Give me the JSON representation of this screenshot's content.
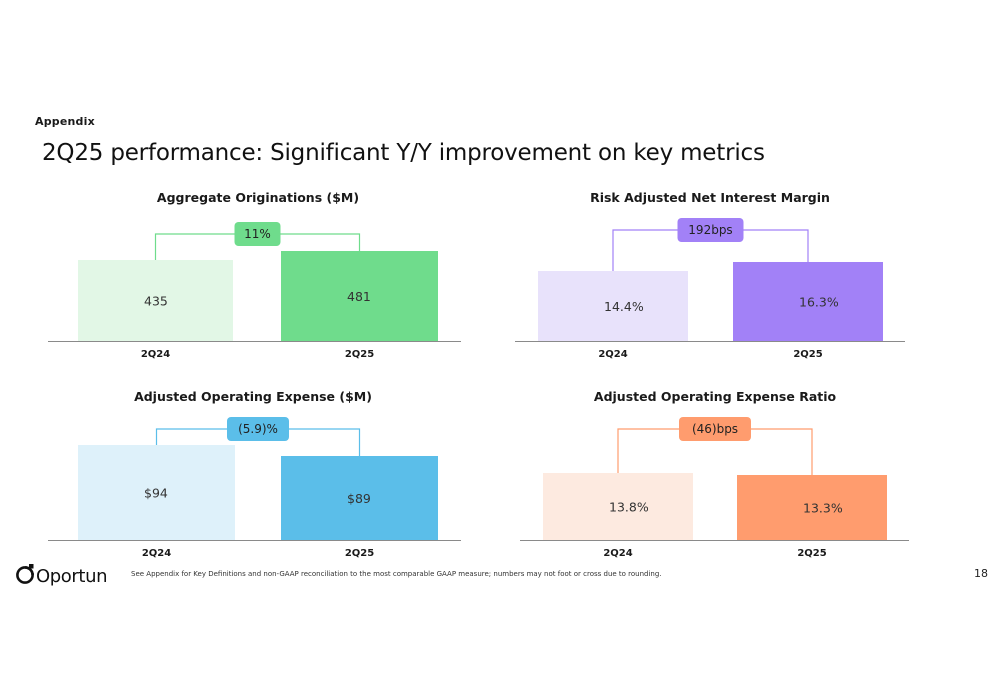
{
  "header": {
    "section": "Appendix",
    "title": "2Q25 performance: Significant Y/Y improvement on key metrics"
  },
  "chart_data": [
    {
      "type": "bar",
      "title": "Aggregate Originations ($M)",
      "categories": [
        "2Q24",
        "2Q25"
      ],
      "values": [
        435,
        481
      ],
      "labels": [
        "435",
        "481"
      ],
      "change": "11%",
      "colors": {
        "bar_prior": "#e2f7e6",
        "bar_current": "#6fdc8c",
        "bracket": "#6fdc8c",
        "badge": "#6fdc8c"
      }
    },
    {
      "type": "bar",
      "title": "Risk Adjusted Net Interest Margin",
      "categories": [
        "2Q24",
        "2Q25"
      ],
      "values": [
        14.4,
        16.3
      ],
      "labels": [
        "14.4%",
        "16.3%"
      ],
      "change": "192bps",
      "colors": {
        "bar_prior": "#e8e2fb",
        "bar_current": "#a281f7",
        "bracket": "#a281f7",
        "badge": "#a281f7"
      }
    },
    {
      "type": "bar",
      "title": "Adjusted Operating Expense ($M)",
      "categories": [
        "2Q24",
        "2Q25"
      ],
      "values": [
        94,
        89
      ],
      "labels": [
        "$94",
        "$89"
      ],
      "change": "(5.9)%",
      "colors": {
        "bar_prior": "#def1fa",
        "bar_current": "#5bbee9",
        "bracket": "#5bbee9",
        "badge": "#5bbee9"
      }
    },
    {
      "type": "bar",
      "title": "Adjusted Operating Expense Ratio",
      "categories": [
        "2Q24",
        "2Q25"
      ],
      "values": [
        13.8,
        13.3
      ],
      "labels": [
        "13.8%",
        "13.3%"
      ],
      "change": "(46)bps",
      "colors": {
        "bar_prior": "#fdeae0",
        "bar_current": "#ff9c6e",
        "bracket": "#ff9c6e",
        "badge": "#ff9c6e"
      }
    }
  ],
  "footer": {
    "logo_text": "Oportun",
    "footnote": "See Appendix for Key Definitions and non-GAAP reconciliation to the most comparable GAAP measure; numbers may not foot or cross due to rounding.",
    "page_number": "18"
  },
  "colors": {
    "logo": "#111111",
    "axis": "#8a8a8a",
    "text": "#1a1a1a"
  }
}
